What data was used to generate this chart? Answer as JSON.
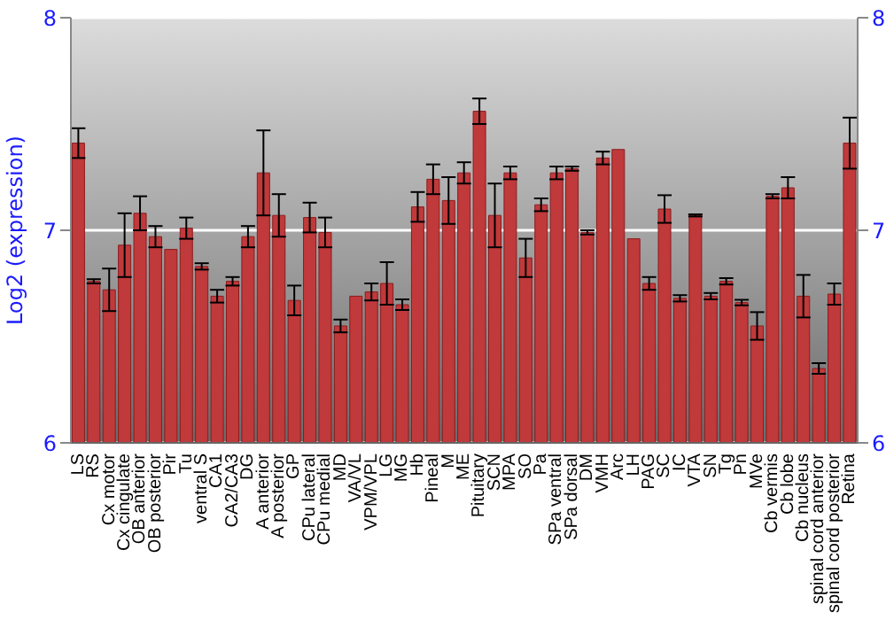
{
  "chart_data": {
    "type": "bar",
    "ylabel": "Log2 (expression)",
    "categories": [
      "LS",
      "RS",
      "Cx motor",
      "Cx cingulate",
      "OB anterior",
      "OB posterior",
      "Pir",
      "Tu",
      "ventral S",
      "CA1",
      "CA2/CA3",
      "DG",
      "A anterior",
      "A posterior",
      "GP",
      "CPu lateral",
      "CPu medial",
      "MD",
      "VA/VL",
      "VPM/VPL",
      "LG",
      "MG",
      "Hb",
      "Pineal",
      "M",
      "ME",
      "Pituitary",
      "SCN",
      "MPA",
      "SO",
      "Pa",
      "SPa ventral",
      "SPa dorsal",
      "DM",
      "VMH",
      "Arc",
      "LH",
      "PAG",
      "SC",
      "IC",
      "VTA",
      "SN",
      "Tg",
      "Pn",
      "MVe",
      "Cb vermis",
      "Cb lobe",
      "Cb nucleus",
      "spinal cord anterior",
      "spinal cord posterior",
      "Retina"
    ],
    "values": [
      7.41,
      6.76,
      6.72,
      6.93,
      7.08,
      6.97,
      6.91,
      7.01,
      6.83,
      6.69,
      6.76,
      6.97,
      7.27,
      7.07,
      6.67,
      7.06,
      6.99,
      6.55,
      6.69,
      6.71,
      6.75,
      6.65,
      7.11,
      7.24,
      7.14,
      7.27,
      7.56,
      7.07,
      7.27,
      6.87,
      7.12,
      7.27,
      7.29,
      6.99,
      7.34,
      7.38,
      6.96,
      6.75,
      7.1,
      6.68,
      7.07,
      6.69,
      6.76,
      6.66,
      6.55,
      7.16,
      7.2,
      6.69,
      6.35,
      6.7,
      7.41
    ],
    "errors": [
      0.07,
      0.01,
      0.1,
      0.15,
      0.08,
      0.05,
      null,
      0.05,
      0.015,
      0.03,
      0.02,
      0.05,
      0.2,
      0.1,
      0.07,
      0.07,
      0.07,
      0.03,
      null,
      0.04,
      0.1,
      0.025,
      0.07,
      0.07,
      0.11,
      0.05,
      0.06,
      0.15,
      0.03,
      0.09,
      0.03,
      0.03,
      0.01,
      0.01,
      0.03,
      null,
      null,
      0.03,
      0.065,
      0.015,
      0.005,
      0.015,
      0.015,
      0.013,
      0.065,
      0.01,
      0.05,
      0.1,
      0.025,
      0.05,
      0.12
    ],
    "color": "#c0393b",
    "ylim": [
      6,
      8
    ],
    "yticks": [
      6,
      7,
      8
    ],
    "y2lim": [
      6,
      8
    ],
    "y2ticks": [
      6,
      7,
      8
    ],
    "grid": "y"
  }
}
